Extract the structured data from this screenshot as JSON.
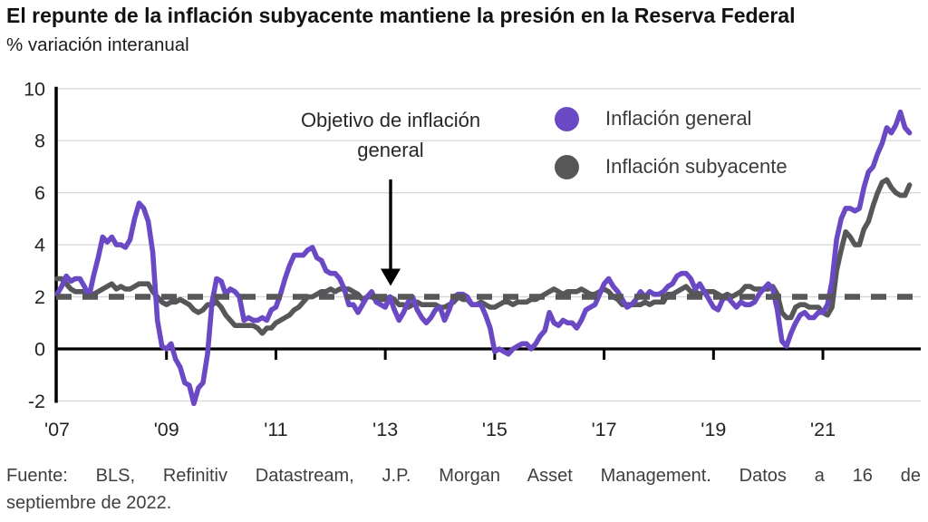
{
  "header": {
    "title": "El repunte de la inflación subyacente mantiene la presión en la Reserva Federal",
    "subtitle": "% variación interanual"
  },
  "legend": {
    "items": [
      {
        "label": "Inflación general",
        "color": "#6C49C4"
      },
      {
        "label": "Inflación subyacente",
        "color": "#57575A"
      }
    ]
  },
  "annotation": {
    "text": "Objetivo de inflación general"
  },
  "footer": {
    "line1": "Fuente: BLS, Refinitiv Datastream, J.P. Morgan Asset Management. Datos a 16 de",
    "line2": "septiembre de 2022."
  },
  "chart_data": {
    "type": "line",
    "title": "El repunte de la inflación subyacente mantiene la presión en la Reserva Federal",
    "ylabel": "% variación interanual",
    "frequency": "monthly",
    "x_start": "2007-01",
    "x_end": "2022-08",
    "ylim": [
      -2,
      10
    ],
    "y_ticks": [
      -2,
      0,
      2,
      4,
      6,
      8,
      10
    ],
    "x_tick_years": [
      2007,
      2009,
      2011,
      2013,
      2015,
      2017,
      2019,
      2021
    ],
    "x_tick_labels": [
      "'07",
      "'09",
      "'11",
      "'13",
      "'15",
      "'17",
      "'19",
      "'21"
    ],
    "grid": "horizontal",
    "legend_position": "top-right",
    "target_line": {
      "value": 2,
      "style": "dashed",
      "color": "#57575A",
      "label": "Objetivo de inflación general"
    },
    "series": [
      {
        "name": "Inflación general",
        "color": "#6C49C4",
        "values": [
          2.1,
          2.4,
          2.8,
          2.6,
          2.7,
          2.7,
          2.4,
          2.0,
          2.8,
          3.5,
          4.3,
          4.1,
          4.3,
          4.0,
          4.0,
          3.9,
          4.2,
          5.0,
          5.6,
          5.4,
          4.9,
          3.7,
          1.1,
          0.1,
          0.0,
          0.2,
          -0.4,
          -0.7,
          -1.3,
          -1.4,
          -2.1,
          -1.5,
          -1.3,
          -0.2,
          1.8,
          2.7,
          2.6,
          2.1,
          2.3,
          2.2,
          2.0,
          1.1,
          1.2,
          1.1,
          1.1,
          1.2,
          1.1,
          1.5,
          1.6,
          2.1,
          2.7,
          3.2,
          3.6,
          3.6,
          3.6,
          3.8,
          3.9,
          3.5,
          3.4,
          3.0,
          2.9,
          2.9,
          2.7,
          2.3,
          1.7,
          1.7,
          1.4,
          1.7,
          2.0,
          2.2,
          1.8,
          1.7,
          1.6,
          2.0,
          1.5,
          1.1,
          1.4,
          1.8,
          2.0,
          1.5,
          1.2,
          1.0,
          1.2,
          1.5,
          1.6,
          1.1,
          1.5,
          2.0,
          2.1,
          2.1,
          2.0,
          1.7,
          1.7,
          1.7,
          1.3,
          0.8,
          -0.1,
          0.0,
          -0.1,
          -0.2,
          0.0,
          0.1,
          0.2,
          0.2,
          0.0,
          0.2,
          0.5,
          0.7,
          1.4,
          1.0,
          0.9,
          1.1,
          1.0,
          1.0,
          0.8,
          1.1,
          1.5,
          1.6,
          1.7,
          2.1,
          2.5,
          2.7,
          2.4,
          2.2,
          1.9,
          1.6,
          1.7,
          1.9,
          2.2,
          2.0,
          2.2,
          2.1,
          2.1,
          2.2,
          2.4,
          2.5,
          2.8,
          2.9,
          2.9,
          2.7,
          2.3,
          2.5,
          2.2,
          1.9,
          1.6,
          1.5,
          1.9,
          2.0,
          1.8,
          1.6,
          1.8,
          1.7,
          1.7,
          1.8,
          2.1,
          2.3,
          2.5,
          2.3,
          1.5,
          0.3,
          0.1,
          0.6,
          1.0,
          1.3,
          1.4,
          1.2,
          1.2,
          1.4,
          1.4,
          1.7,
          2.6,
          4.2,
          5.0,
          5.4,
          5.4,
          5.3,
          5.4,
          6.2,
          6.8,
          7.0,
          7.5,
          7.9,
          8.5,
          8.3,
          8.6,
          9.1,
          8.5,
          8.3
        ]
      },
      {
        "name": "Inflación subyacente",
        "color": "#57575A",
        "values": [
          2.7,
          2.7,
          2.5,
          2.3,
          2.2,
          2.2,
          2.2,
          2.1,
          2.1,
          2.2,
          2.3,
          2.4,
          2.5,
          2.3,
          2.4,
          2.3,
          2.3,
          2.4,
          2.5,
          2.5,
          2.5,
          2.2,
          2.0,
          1.8,
          1.7,
          1.8,
          1.8,
          1.9,
          1.8,
          1.7,
          1.5,
          1.4,
          1.5,
          1.7,
          1.7,
          1.8,
          1.6,
          1.3,
          1.1,
          0.9,
          0.9,
          0.9,
          0.9,
          0.9,
          0.8,
          0.6,
          0.8,
          0.8,
          1.0,
          1.1,
          1.2,
          1.3,
          1.5,
          1.6,
          1.8,
          2.0,
          2.0,
          2.1,
          2.2,
          2.2,
          2.3,
          2.2,
          2.3,
          2.3,
          2.3,
          2.2,
          2.1,
          1.9,
          2.0,
          2.0,
          1.9,
          1.9,
          1.9,
          2.0,
          1.9,
          1.7,
          1.7,
          1.6,
          1.7,
          1.8,
          1.7,
          1.7,
          1.7,
          1.7,
          1.6,
          1.6,
          1.7,
          1.8,
          2.0,
          1.9,
          1.9,
          1.7,
          1.7,
          1.8,
          1.7,
          1.6,
          1.6,
          1.7,
          1.8,
          1.8,
          1.7,
          1.8,
          1.8,
          1.8,
          1.9,
          1.9,
          2.0,
          2.1,
          2.2,
          2.3,
          2.2,
          2.1,
          2.2,
          2.2,
          2.2,
          2.3,
          2.2,
          2.1,
          2.1,
          2.2,
          2.3,
          2.2,
          2.0,
          1.9,
          1.7,
          1.7,
          1.7,
          1.7,
          1.7,
          1.8,
          1.7,
          1.8,
          1.8,
          1.8,
          2.1,
          2.1,
          2.2,
          2.3,
          2.4,
          2.2,
          2.2,
          2.1,
          2.2,
          2.2,
          2.2,
          2.1,
          2.0,
          2.1,
          2.0,
          2.1,
          2.2,
          2.4,
          2.4,
          2.3,
          2.3,
          2.3,
          2.3,
          2.4,
          2.1,
          1.4,
          1.2,
          1.2,
          1.6,
          1.7,
          1.7,
          1.6,
          1.6,
          1.6,
          1.4,
          1.3,
          1.6,
          3.0,
          3.8,
          4.5,
          4.3,
          4.0,
          4.0,
          4.6,
          4.9,
          5.5,
          6.0,
          6.4,
          6.5,
          6.2,
          6.0,
          5.9,
          5.9,
          6.3
        ]
      }
    ],
    "colors": {
      "axis": "#000000",
      "gridline": "#d7d7d7",
      "tick_label": "#242424"
    }
  }
}
